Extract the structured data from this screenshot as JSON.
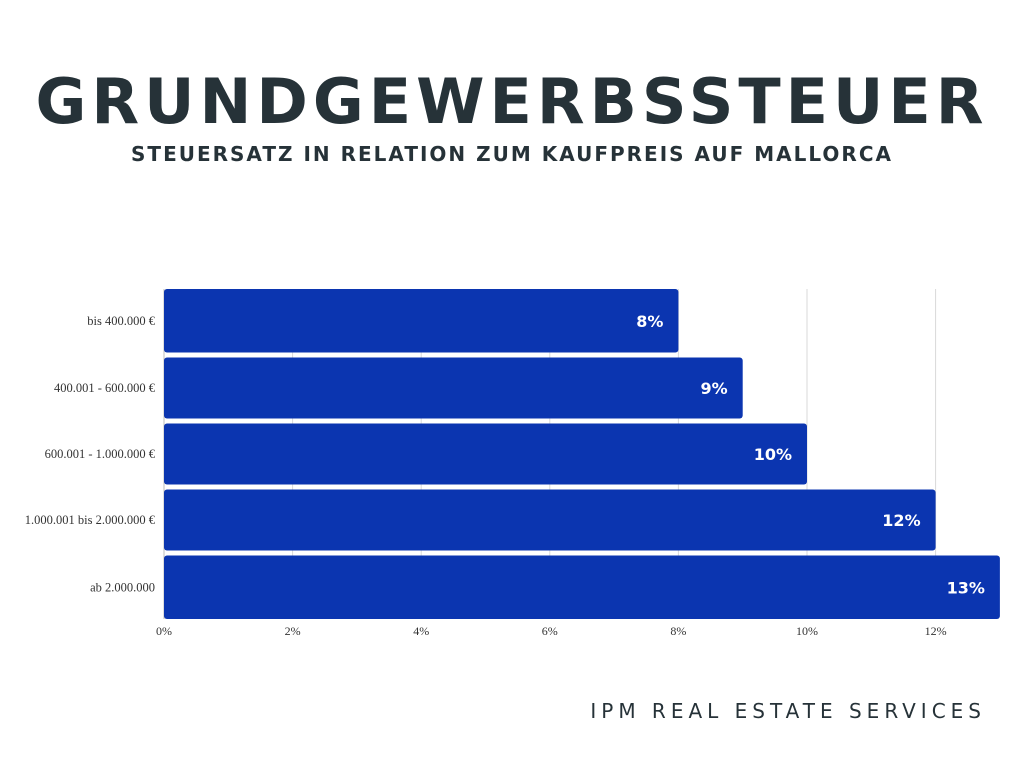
{
  "header": {
    "title": "GRUNDGEWERBSSTEUER",
    "subtitle": "STEUERSATZ IN RELATION ZUM KAUFPREIS AUF MALLORCA"
  },
  "footer": {
    "brand": "IPM REAL ESTATE SERVICES"
  },
  "colors": {
    "bar": "#0b35b0",
    "grid": "#d9d9d9",
    "text": "#263238"
  },
  "chart_data": {
    "type": "bar",
    "orientation": "horizontal",
    "categories": [
      "bis 400.000 €",
      "400.001 - 600.000 €",
      "600.001 - 1.000.000 €",
      "1.000.001 bis 2.000.000 €",
      "ab 2.000.000"
    ],
    "values": [
      8,
      9,
      10,
      12,
      13
    ],
    "data_labels": [
      "8%",
      "9%",
      "10%",
      "12%",
      "13%"
    ],
    "x_ticks": [
      0,
      2,
      4,
      6,
      8,
      10,
      12
    ],
    "x_tick_labels": [
      "0%",
      "2%",
      "4%",
      "6%",
      "8%",
      "10%",
      "12%"
    ],
    "xlim": [
      0,
      13
    ],
    "title": "",
    "xlabel": "",
    "ylabel": "",
    "grid": "vertical",
    "legend": "none"
  }
}
